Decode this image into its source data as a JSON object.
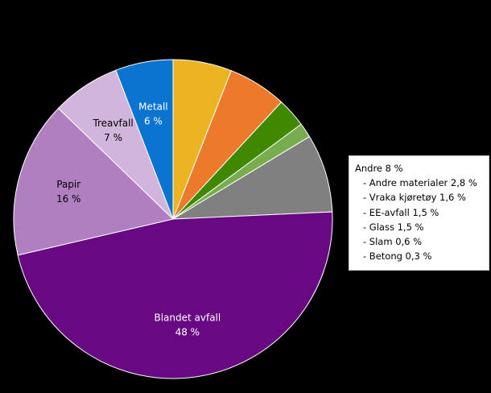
{
  "chart_data": {
    "type": "pie",
    "title": "",
    "start_angle_deg": 0,
    "direction": "clockwise",
    "slices": [
      {
        "label": "",
        "value": 6,
        "color": "#ebb420",
        "labeled": false
      },
      {
        "label": "",
        "value": 6,
        "color": "#ec7a2a",
        "labeled": false
      },
      {
        "label": "",
        "value": 3,
        "color": "#3f8800",
        "labeled": false
      },
      {
        "label": "",
        "value": 1.5,
        "color": "#77ad4f",
        "labeled": false
      },
      {
        "label": "Andre",
        "value": 8,
        "color": "#808080",
        "labeled": false
      },
      {
        "label": "Blandet avfall",
        "value": 47.5,
        "display": "48 %",
        "color": "#680882",
        "labeled": true,
        "text_color": "#ffffff"
      },
      {
        "label": "Papir",
        "value": 16,
        "display": "16 %",
        "color": "#b07fc0",
        "labeled": true,
        "text_color": "#000000"
      },
      {
        "label": "Treavfall",
        "value": 7,
        "display": "7 %",
        "color": "#d1b5dc",
        "labeled": true,
        "text_color": "#000000"
      },
      {
        "label": "Metall",
        "value": 5.9,
        "display": "6 %",
        "color": "#0b74d0",
        "labeled": true,
        "text_color": "#ffffff"
      }
    ]
  },
  "legend": {
    "title": "Andre  8 %",
    "items": [
      "- Andre  materialer  2,8  %",
      "- Vraka kjøretøy 1,6  %",
      "- EE-avfall  1,5  %",
      "- Glass 1,5  %",
      "- Slam  0,6  %",
      "- Betong 0,3  %"
    ]
  }
}
